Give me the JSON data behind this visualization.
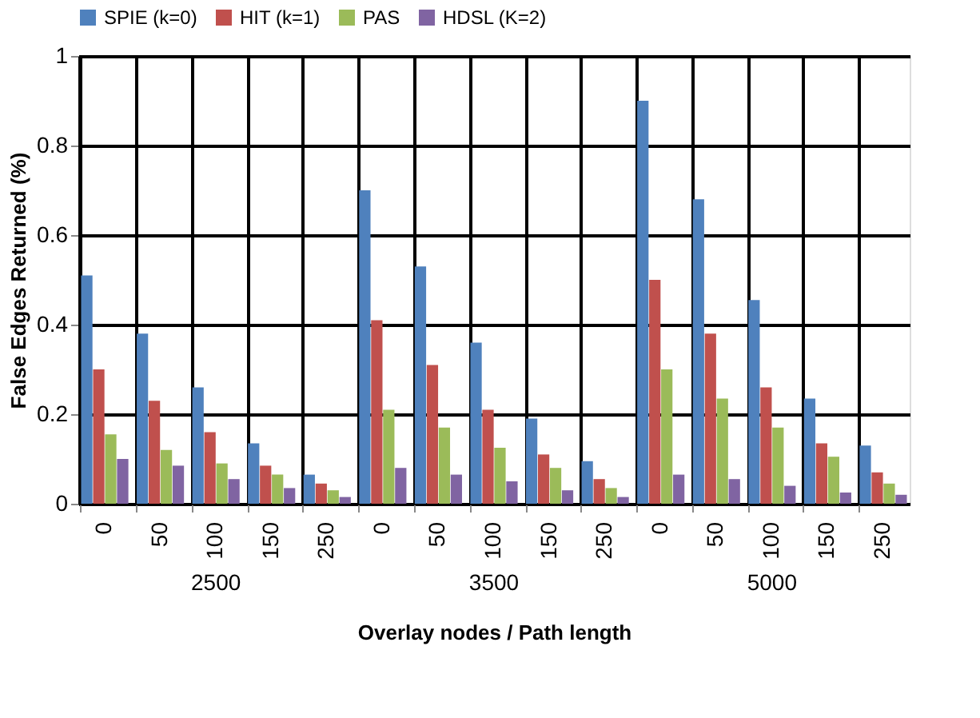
{
  "chart_data": {
    "type": "bar",
    "xlabel": "Overlay nodes / Path length",
    "ylabel": "False Edges Returned (%)",
    "categories": [
      "0",
      "50",
      "100",
      "150",
      "250",
      "0",
      "50",
      "100",
      "150",
      "250",
      "0",
      "50",
      "100",
      "150",
      "250"
    ],
    "annotations": [
      "2500",
      "3500",
      "5000"
    ],
    "series": [
      {
        "name": "SPIE (k=0)",
        "color": "#4f81bd",
        "values": [
          0.51,
          0.38,
          0.26,
          0.135,
          0.065,
          0.7,
          0.53,
          0.36,
          0.19,
          0.095,
          0.9,
          0.68,
          0.455,
          0.235,
          0.13
        ]
      },
      {
        "name": "HIT (k=1)",
        "color": "#c0504d",
        "values": [
          0.3,
          0.23,
          0.16,
          0.085,
          0.045,
          0.41,
          0.31,
          0.21,
          0.11,
          0.055,
          0.5,
          0.38,
          0.26,
          0.135,
          0.07
        ]
      },
      {
        "name": "PAS",
        "color": "#9bbb59",
        "values": [
          0.155,
          0.12,
          0.09,
          0.065,
          0.03,
          0.21,
          0.17,
          0.125,
          0.08,
          0.035,
          0.3,
          0.235,
          0.17,
          0.105,
          0.045
        ]
      },
      {
        "name": "HDSL (K=2)",
        "color": "#8064a2",
        "values": [
          0.1,
          0.085,
          0.055,
          0.035,
          0.015,
          0.08,
          0.065,
          0.05,
          0.03,
          0.015,
          0.065,
          0.055,
          0.04,
          0.025,
          0.02
        ]
      }
    ],
    "ylim": [
      0,
      1
    ],
    "yticks": [
      0,
      0.2,
      0.4,
      0.6,
      0.8,
      1
    ],
    "grid": true,
    "legend": "top"
  }
}
